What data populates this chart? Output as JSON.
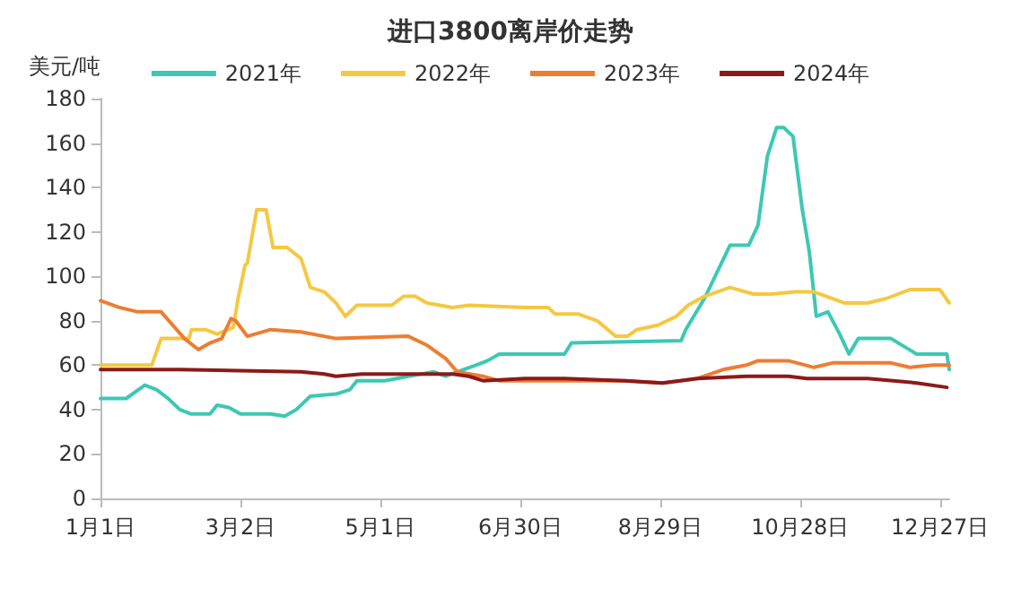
{
  "chart_data": {
    "type": "line",
    "title": "进口3800离岸价走势",
    "ylabel": "美元/吨",
    "xlim": [
      "--01-01",
      "--12-31"
    ],
    "xticks": [
      {
        "value": "--01-01",
        "label": "1月1日"
      },
      {
        "value": "--03-02",
        "label": "3月2日"
      },
      {
        "value": "--05-01",
        "label": "5月1日"
      },
      {
        "value": "--06-30",
        "label": "6月30日"
      },
      {
        "value": "--08-29",
        "label": "8月29日"
      },
      {
        "value": "--10-28",
        "label": "10月28日"
      },
      {
        "value": "--12-27",
        "label": "12月27日"
      }
    ],
    "ylim": [
      0,
      180
    ],
    "yticks": [
      0,
      20,
      40,
      60,
      80,
      100,
      120,
      140,
      160,
      180
    ],
    "grid": false,
    "legend": "top",
    "marker": "none",
    "line_style": "solid",
    "series": [
      {
        "name": "2021年",
        "color": "#3cc8b4",
        "x": [
          "--01-01",
          "--01-12",
          "--01-16",
          "--01-20",
          "--01-25",
          "--01-30",
          "--02-04",
          "--02-09",
          "--02-17",
          "--02-20",
          "--02-25",
          "--03-02",
          "--03-15",
          "--03-21",
          "--03-26",
          "--04-01",
          "--04-12",
          "--04-18",
          "--04-21",
          "--05-03",
          "--05-13",
          "--05-24",
          "--05-29",
          "--06-03",
          "--06-11",
          "--06-16",
          "--06-21",
          "--07-02",
          "--07-19",
          "--07-22",
          "--09-07",
          "--09-09",
          "--09-17",
          "--09-28",
          "--10-06",
          "--10-10",
          "--10-14",
          "--10-18",
          "--10-21",
          "--10-25",
          "--10-29",
          "--11-01",
          "--11-04",
          "--11-09",
          "--11-14",
          "--11-18",
          "--11-22",
          "--12-06",
          "--12-17",
          "--12-30",
          "--12-31"
        ],
        "values": [
          45,
          45,
          48,
          51,
          49,
          45,
          40,
          38,
          38,
          42,
          41,
          38,
          38,
          37,
          40,
          46,
          47,
          49,
          53,
          53,
          55,
          57,
          55,
          57,
          60,
          62,
          65,
          65,
          65,
          70,
          71,
          76,
          90,
          114,
          114,
          123,
          154,
          167,
          167,
          163,
          130,
          111,
          82,
          84,
          74,
          65,
          72,
          72,
          65,
          65,
          58
        ]
      },
      {
        "name": "2022年",
        "color": "#f5c842",
        "x": [
          "--01-01",
          "--01-23",
          "--01-27",
          "--02-08",
          "--02-09",
          "--02-15",
          "--02-20",
          "--02-27",
          "--03-01",
          "--03-04",
          "--03-05",
          "--03-09",
          "--03-13",
          "--03-16",
          "--03-22",
          "--03-28",
          "--04-01",
          "--04-07",
          "--04-12",
          "--04-16",
          "--04-21",
          "--05-06",
          "--05-11",
          "--05-16",
          "--05-21",
          "--06-01",
          "--06-08",
          "--07-02",
          "--07-12",
          "--07-15",
          "--07-25",
          "--08-02",
          "--08-10",
          "--08-15",
          "--08-19",
          "--08-28",
          "--09-05",
          "--09-10",
          "--09-17",
          "--09-28",
          "--10-08",
          "--10-16",
          "--10-26",
          "--11-03",
          "--11-16",
          "--11-26",
          "--12-04",
          "--12-14",
          "--12-27",
          "--12-31"
        ],
        "values": [
          60,
          60,
          72,
          72,
          76,
          76,
          74,
          77,
          90,
          105,
          106,
          130,
          130,
          113,
          113,
          108,
          95,
          93,
          88,
          82,
          87,
          87,
          91,
          91,
          88,
          86,
          87,
          86,
          86,
          83,
          83,
          80,
          73,
          73,
          76,
          78,
          82,
          87,
          91,
          95,
          92,
          92,
          93,
          93,
          88,
          88,
          90,
          94,
          94,
          88
        ]
      },
      {
        "name": "2023年",
        "color": "#ed7d31",
        "x": [
          "--01-01",
          "--01-09",
          "--01-17",
          "--01-27",
          "--02-01",
          "--02-06",
          "--02-12",
          "--02-17",
          "--02-22",
          "--02-26",
          "--02-28",
          "--03-05",
          "--03-15",
          "--03-28",
          "--04-12",
          "--05-13",
          "--05-21",
          "--05-29",
          "--06-03",
          "--06-14",
          "--06-21",
          "--07-19",
          "--08-14",
          "--08-30",
          "--09-14",
          "--09-25",
          "--10-05",
          "--10-10",
          "--10-23",
          "--11-03",
          "--11-11",
          "--12-06",
          "--12-14",
          "--12-24",
          "--12-31"
        ],
        "values": [
          89,
          86,
          84,
          84,
          78,
          72,
          67,
          70,
          72,
          81,
          80,
          73,
          76,
          75,
          72,
          73,
          69,
          63,
          57,
          55,
          53,
          53,
          53,
          52,
          54,
          58,
          60,
          62,
          62,
          59,
          61,
          61,
          59,
          60,
          60
        ]
      },
      {
        "name": "2024年",
        "color": "#8b1a1a",
        "x": [
          "--01-01",
          "--02-04",
          "--03-28",
          "--04-07",
          "--04-12",
          "--04-23",
          "--06-01",
          "--06-08",
          "--06-14",
          "--07-02",
          "--07-19",
          "--08-14",
          "--08-30",
          "--09-14",
          "--10-05",
          "--10-23",
          "--10-31",
          "--11-26",
          "--12-17",
          "--12-30"
        ],
        "values": [
          58,
          58,
          57,
          56,
          55,
          56,
          56,
          55,
          53,
          54,
          54,
          53,
          52,
          54,
          55,
          55,
          54,
          54,
          52,
          50
        ]
      }
    ]
  }
}
